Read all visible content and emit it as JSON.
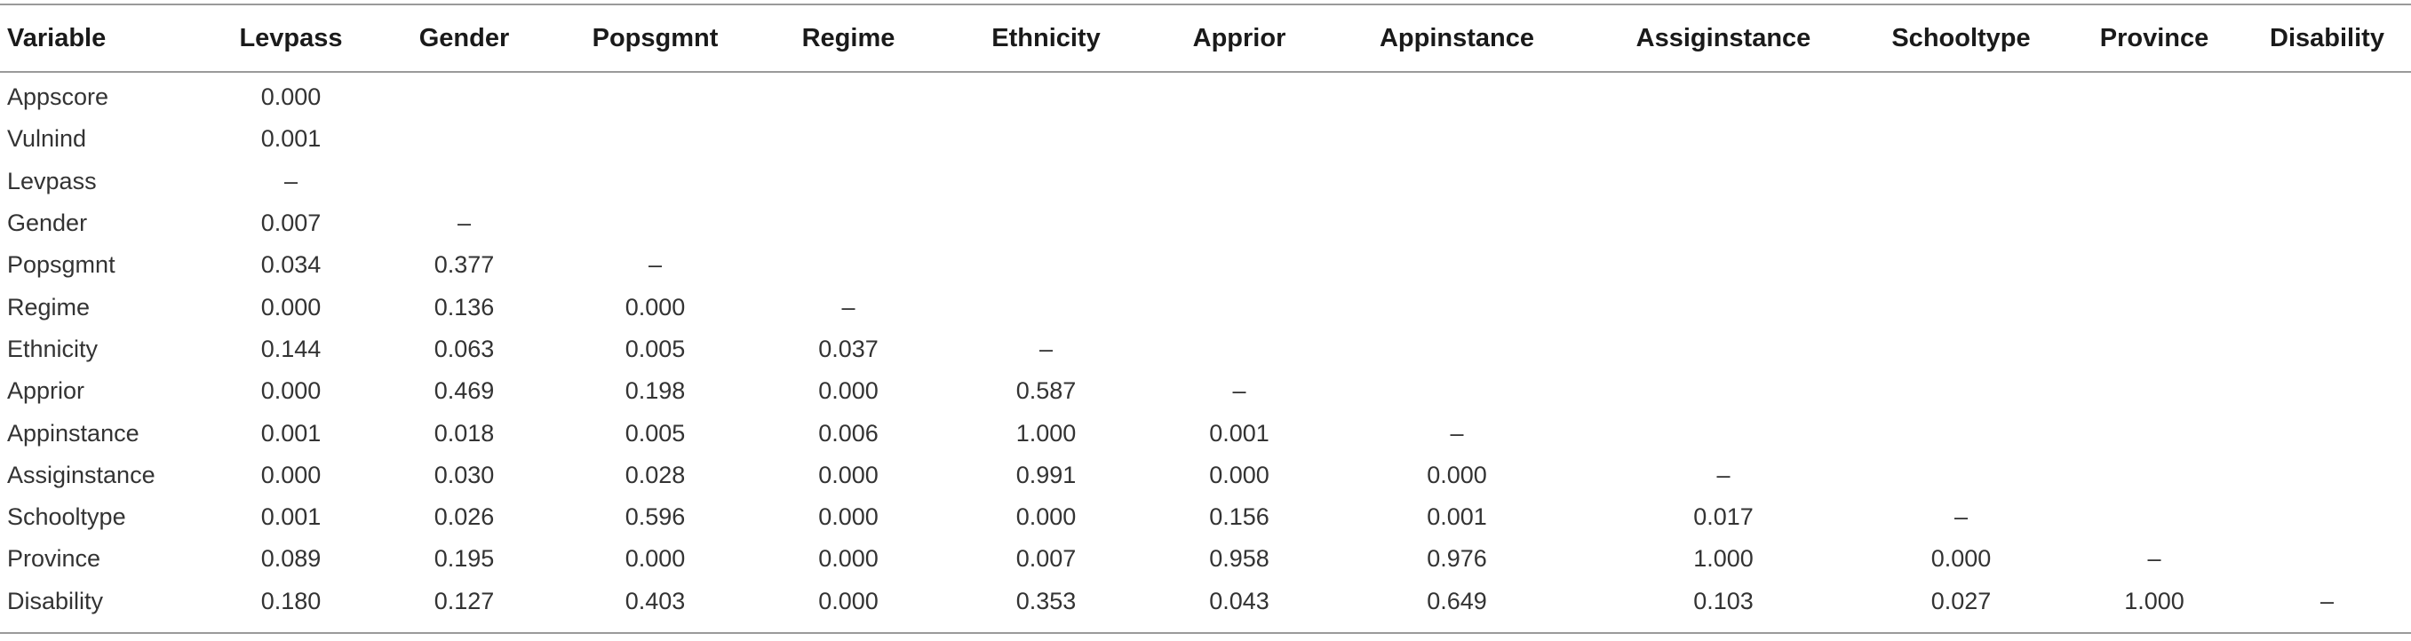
{
  "table": {
    "headers": [
      "Variable",
      "Levpass",
      "Gender",
      "Popsgmnt",
      "Regime",
      "Ethnicity",
      "Apprior",
      "Appinstance",
      "Assiginstance",
      "Schooltype",
      "Province",
      "Disability"
    ],
    "rows": [
      [
        "Appscore",
        "0.000",
        "",
        "",
        "",
        "",
        "",
        "",
        "",
        "",
        "",
        ""
      ],
      [
        "Vulnind",
        "0.001",
        "",
        "",
        "",
        "",
        "",
        "",
        "",
        "",
        "",
        ""
      ],
      [
        "Levpass",
        "–",
        "",
        "",
        "",
        "",
        "",
        "",
        "",
        "",
        "",
        ""
      ],
      [
        "Gender",
        "0.007",
        "–",
        "",
        "",
        "",
        "",
        "",
        "",
        "",
        "",
        ""
      ],
      [
        "Popsgmnt",
        "0.034",
        "0.377",
        "–",
        "",
        "",
        "",
        "",
        "",
        "",
        "",
        ""
      ],
      [
        "Regime",
        "0.000",
        "0.136",
        "0.000",
        "–",
        "",
        "",
        "",
        "",
        "",
        "",
        ""
      ],
      [
        "Ethnicity",
        "0.144",
        "0.063",
        "0.005",
        "0.037",
        "–",
        "",
        "",
        "",
        "",
        "",
        ""
      ],
      [
        "Apprior",
        "0.000",
        "0.469",
        "0.198",
        "0.000",
        "0.587",
        "–",
        "",
        "",
        "",
        "",
        ""
      ],
      [
        "Appinstance",
        "0.001",
        "0.018",
        "0.005",
        "0.006",
        "1.000",
        "0.001",
        "–",
        "",
        "",
        "",
        ""
      ],
      [
        "Assiginstance",
        "0.000",
        "0.030",
        "0.028",
        "0.000",
        "0.991",
        "0.000",
        "0.000",
        "–",
        "",
        "",
        ""
      ],
      [
        "Schooltype",
        "0.001",
        "0.026",
        "0.596",
        "0.000",
        "0.000",
        "0.156",
        "0.001",
        "0.017",
        "–",
        "",
        ""
      ],
      [
        "Province",
        "0.089",
        "0.195",
        "0.000",
        "0.000",
        "0.007",
        "0.958",
        "0.976",
        "1.000",
        "0.000",
        "–",
        ""
      ],
      [
        "Disability",
        "0.180",
        "0.127",
        "0.403",
        "0.000",
        "0.353",
        "0.043",
        "0.649",
        "0.103",
        "0.027",
        "1.000",
        "–"
      ]
    ]
  }
}
